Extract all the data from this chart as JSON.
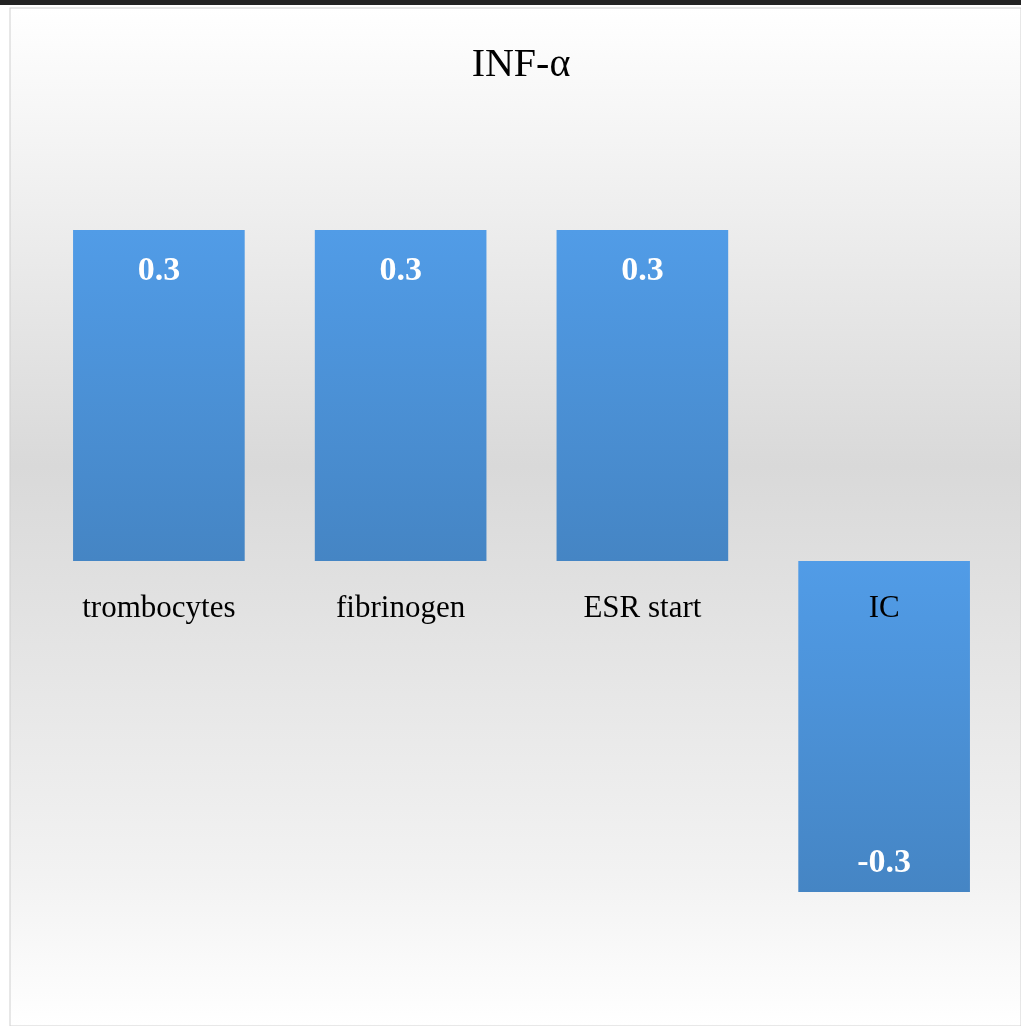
{
  "chart_data": {
    "type": "bar",
    "title": "INF-α",
    "categories": [
      "trombocytes",
      "fibrinogen",
      "ESR start",
      "IC"
    ],
    "values": [
      0.3,
      0.3,
      0.3,
      -0.3
    ],
    "color": "#4a8fd3",
    "data_labels": true
  }
}
